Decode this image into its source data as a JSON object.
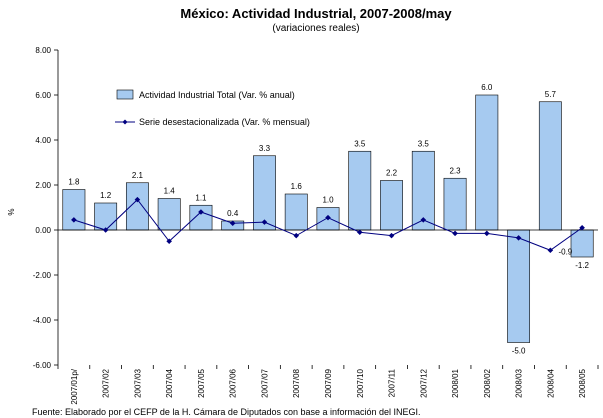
{
  "chart_data": {
    "type": "bar",
    "title": "México: Actividad Industrial, 2007-2008/may",
    "subtitle": "(variaciones reales)",
    "ylabel": "%",
    "xlabel": "",
    "ylim": [
      -6,
      8
    ],
    "yticks": [
      "8.00",
      "6.00",
      "4.00",
      "2.00",
      "0.00",
      "-2.00",
      "-4.00",
      "-6.00"
    ],
    "ytick_values": [
      8,
      6,
      4,
      2,
      0,
      -2,
      -4,
      -6
    ],
    "categories": [
      "2007/01p/",
      "2007/02",
      "2007/03",
      "2007/04",
      "2007/05",
      "2007/06",
      "2007/07",
      "2007/08",
      "2007/09",
      "2007/10",
      "2007/11",
      "2007/12",
      "2008/01",
      "2008/02",
      "2008/03",
      "2008/04",
      "2008/05"
    ],
    "series": [
      {
        "name": "Actividad Industrial Total (Var. % anual)",
        "type": "bar",
        "color": "#a6caf0",
        "values": [
          1.8,
          1.2,
          2.1,
          1.4,
          1.1,
          0.4,
          3.3,
          1.6,
          1.0,
          3.5,
          2.2,
          3.5,
          2.3,
          6.0,
          -5.0,
          5.7,
          -1.2
        ],
        "labels": [
          "1.8",
          "1.2",
          "2.1",
          "1.4",
          "1.1",
          "0.4",
          "3.3",
          "1.6",
          "1.0",
          "3.5",
          "2.2",
          "3.5",
          "2.3",
          "6.0",
          "-5.0",
          "5.7",
          "-1.2"
        ],
        "labelled": [
          true,
          true,
          true,
          true,
          true,
          true,
          true,
          true,
          true,
          true,
          true,
          true,
          true,
          true,
          true,
          true,
          true
        ]
      },
      {
        "name": "Serie desestacionalizada (Var. % mensual)",
        "type": "line",
        "color": "#000080",
        "values": [
          0.45,
          0.0,
          1.35,
          -0.5,
          0.8,
          0.3,
          0.35,
          -0.25,
          0.55,
          -0.1,
          -0.25,
          0.45,
          -0.15,
          -0.15,
          -0.35,
          -0.9,
          0.1
        ],
        "labels": [
          "",
          "",
          "",
          "",
          "",
          "",
          "",
          "",
          "",
          "",
          "",
          "",
          "",
          "",
          "",
          "-0.9",
          ""
        ]
      }
    ],
    "grid": false,
    "legend_position": "top-left"
  },
  "source_note": "Fuente: Elaborado por el CEFP de la H. Cámara de Diputados con base a información del INEGI."
}
